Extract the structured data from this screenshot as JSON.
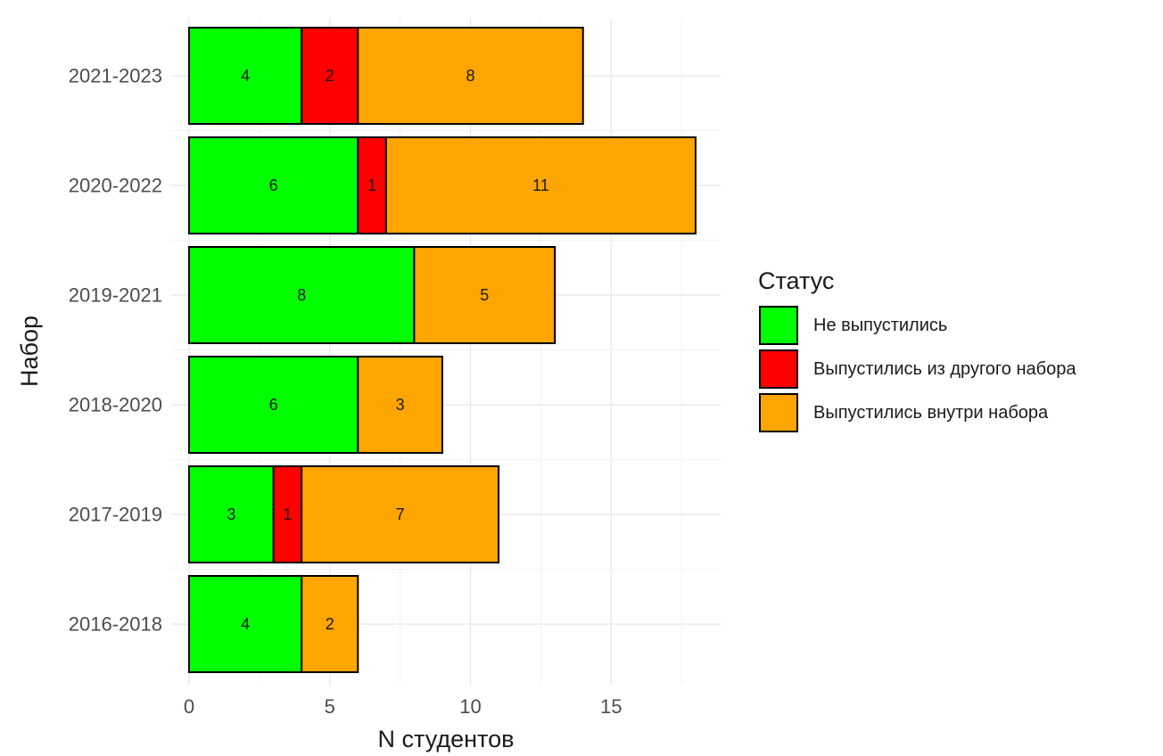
{
  "chart_data": {
    "type": "bar",
    "orientation": "horizontal",
    "stacked": true,
    "categories": [
      "2021-2023",
      "2020-2022",
      "2019-2021",
      "2018-2020",
      "2017-2019",
      "2016-2018"
    ],
    "series": [
      {
        "name": "Не выпустились",
        "color": "#00FF00",
        "values": [
          4,
          6,
          8,
          6,
          3,
          4
        ]
      },
      {
        "name": "Выпустились из другого набора",
        "color": "#FF0000",
        "values": [
          2,
          1,
          0,
          0,
          1,
          0
        ]
      },
      {
        "name": "Выпустились внутри набора",
        "color": "#FFA500",
        "values": [
          8,
          11,
          5,
          3,
          7,
          2
        ]
      }
    ],
    "xlabel": "N студентов",
    "ylabel": "Набор",
    "xlim": [
      0,
      18
    ],
    "x_ticks": [
      0,
      5,
      10,
      15
    ],
    "grid": true,
    "legend": {
      "title": "Статус",
      "position": "right"
    }
  }
}
